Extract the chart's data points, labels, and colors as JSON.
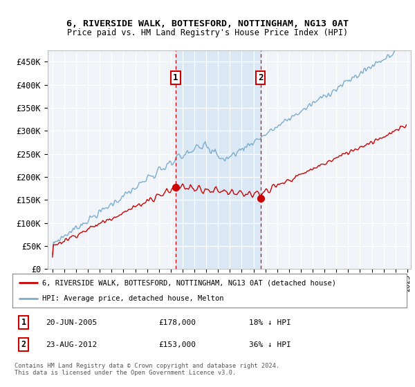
{
  "title1": "6, RIVERSIDE WALK, BOTTESFORD, NOTTINGHAM, NG13 0AT",
  "title2": "Price paid vs. HM Land Registry's House Price Index (HPI)",
  "ylim": [
    0,
    475000
  ],
  "yticks": [
    0,
    50000,
    100000,
    150000,
    200000,
    250000,
    300000,
    350000,
    400000,
    450000
  ],
  "ytick_labels": [
    "£0",
    "£50K",
    "£100K",
    "£150K",
    "£200K",
    "£250K",
    "£300K",
    "£350K",
    "£400K",
    "£450K"
  ],
  "background_color": "#ffffff",
  "plot_bg_color": "#f0f4f8",
  "legend_label_red": "6, RIVERSIDE WALK, BOTTESFORD, NOTTINGHAM, NG13 0AT (detached house)",
  "legend_label_blue": "HPI: Average price, detached house, Melton",
  "t1_year": 2005,
  "t1_month": 6,
  "t1_price": 178000,
  "t2_year": 2012,
  "t2_month": 8,
  "t2_price": 153000,
  "footer": "Contains HM Land Registry data © Crown copyright and database right 2024.\nThis data is licensed under the Open Government Licence v3.0.",
  "red_color": "#cc0000",
  "blue_color": "#7aacce",
  "shade_color": "#dae8f5",
  "label1_date": "20-JUN-2005",
  "label1_price": "£178,000",
  "label1_hpi": "18% ↓ HPI",
  "label2_date": "23-AUG-2012",
  "label2_price": "£153,000",
  "label2_hpi": "36% ↓ HPI"
}
